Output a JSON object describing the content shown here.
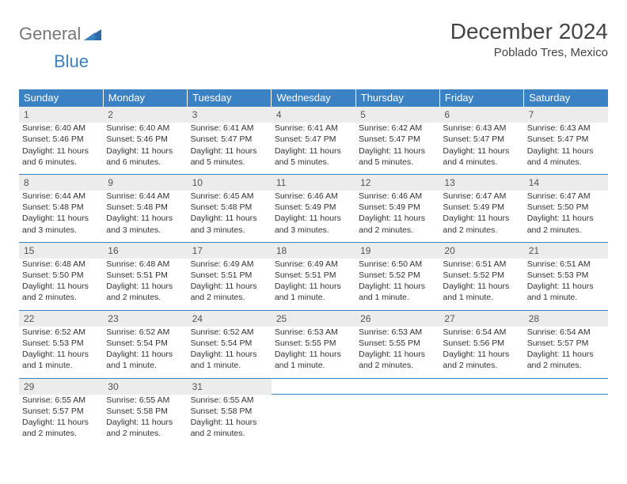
{
  "logo": {
    "word1": "General",
    "word2": "Blue",
    "text1_color": "#777777",
    "text2_color": "#3b82c4"
  },
  "title": "December 2024",
  "location": "Poblado Tres, Mexico",
  "colors": {
    "header_bg": "#3b82c4",
    "header_text": "#ffffff",
    "daynum_bg": "#ececec",
    "border": "#3b82c4",
    "body_text": "#333333"
  },
  "weekdays": [
    "Sunday",
    "Monday",
    "Tuesday",
    "Wednesday",
    "Thursday",
    "Friday",
    "Saturday"
  ],
  "weeks": [
    [
      {
        "n": 1,
        "sr": "6:40 AM",
        "ss": "5:46 PM",
        "dl": "11 hours and 6 minutes."
      },
      {
        "n": 2,
        "sr": "6:40 AM",
        "ss": "5:46 PM",
        "dl": "11 hours and 6 minutes."
      },
      {
        "n": 3,
        "sr": "6:41 AM",
        "ss": "5:47 PM",
        "dl": "11 hours and 5 minutes."
      },
      {
        "n": 4,
        "sr": "6:41 AM",
        "ss": "5:47 PM",
        "dl": "11 hours and 5 minutes."
      },
      {
        "n": 5,
        "sr": "6:42 AM",
        "ss": "5:47 PM",
        "dl": "11 hours and 5 minutes."
      },
      {
        "n": 6,
        "sr": "6:43 AM",
        "ss": "5:47 PM",
        "dl": "11 hours and 4 minutes."
      },
      {
        "n": 7,
        "sr": "6:43 AM",
        "ss": "5:47 PM",
        "dl": "11 hours and 4 minutes."
      }
    ],
    [
      {
        "n": 8,
        "sr": "6:44 AM",
        "ss": "5:48 PM",
        "dl": "11 hours and 3 minutes."
      },
      {
        "n": 9,
        "sr": "6:44 AM",
        "ss": "5:48 PM",
        "dl": "11 hours and 3 minutes."
      },
      {
        "n": 10,
        "sr": "6:45 AM",
        "ss": "5:48 PM",
        "dl": "11 hours and 3 minutes."
      },
      {
        "n": 11,
        "sr": "6:46 AM",
        "ss": "5:49 PM",
        "dl": "11 hours and 3 minutes."
      },
      {
        "n": 12,
        "sr": "6:46 AM",
        "ss": "5:49 PM",
        "dl": "11 hours and 2 minutes."
      },
      {
        "n": 13,
        "sr": "6:47 AM",
        "ss": "5:49 PM",
        "dl": "11 hours and 2 minutes."
      },
      {
        "n": 14,
        "sr": "6:47 AM",
        "ss": "5:50 PM",
        "dl": "11 hours and 2 minutes."
      }
    ],
    [
      {
        "n": 15,
        "sr": "6:48 AM",
        "ss": "5:50 PM",
        "dl": "11 hours and 2 minutes."
      },
      {
        "n": 16,
        "sr": "6:48 AM",
        "ss": "5:51 PM",
        "dl": "11 hours and 2 minutes."
      },
      {
        "n": 17,
        "sr": "6:49 AM",
        "ss": "5:51 PM",
        "dl": "11 hours and 2 minutes."
      },
      {
        "n": 18,
        "sr": "6:49 AM",
        "ss": "5:51 PM",
        "dl": "11 hours and 1 minute."
      },
      {
        "n": 19,
        "sr": "6:50 AM",
        "ss": "5:52 PM",
        "dl": "11 hours and 1 minute."
      },
      {
        "n": 20,
        "sr": "6:51 AM",
        "ss": "5:52 PM",
        "dl": "11 hours and 1 minute."
      },
      {
        "n": 21,
        "sr": "6:51 AM",
        "ss": "5:53 PM",
        "dl": "11 hours and 1 minute."
      }
    ],
    [
      {
        "n": 22,
        "sr": "6:52 AM",
        "ss": "5:53 PM",
        "dl": "11 hours and 1 minute."
      },
      {
        "n": 23,
        "sr": "6:52 AM",
        "ss": "5:54 PM",
        "dl": "11 hours and 1 minute."
      },
      {
        "n": 24,
        "sr": "6:52 AM",
        "ss": "5:54 PM",
        "dl": "11 hours and 1 minute."
      },
      {
        "n": 25,
        "sr": "6:53 AM",
        "ss": "5:55 PM",
        "dl": "11 hours and 1 minute."
      },
      {
        "n": 26,
        "sr": "6:53 AM",
        "ss": "5:55 PM",
        "dl": "11 hours and 2 minutes."
      },
      {
        "n": 27,
        "sr": "6:54 AM",
        "ss": "5:56 PM",
        "dl": "11 hours and 2 minutes."
      },
      {
        "n": 28,
        "sr": "6:54 AM",
        "ss": "5:57 PM",
        "dl": "11 hours and 2 minutes."
      }
    ],
    [
      {
        "n": 29,
        "sr": "6:55 AM",
        "ss": "5:57 PM",
        "dl": "11 hours and 2 minutes."
      },
      {
        "n": 30,
        "sr": "6:55 AM",
        "ss": "5:58 PM",
        "dl": "11 hours and 2 minutes."
      },
      {
        "n": 31,
        "sr": "6:55 AM",
        "ss": "5:58 PM",
        "dl": "11 hours and 2 minutes."
      },
      null,
      null,
      null,
      null
    ]
  ],
  "labels": {
    "sunrise": "Sunrise:",
    "sunset": "Sunset:",
    "daylight": "Daylight:"
  }
}
